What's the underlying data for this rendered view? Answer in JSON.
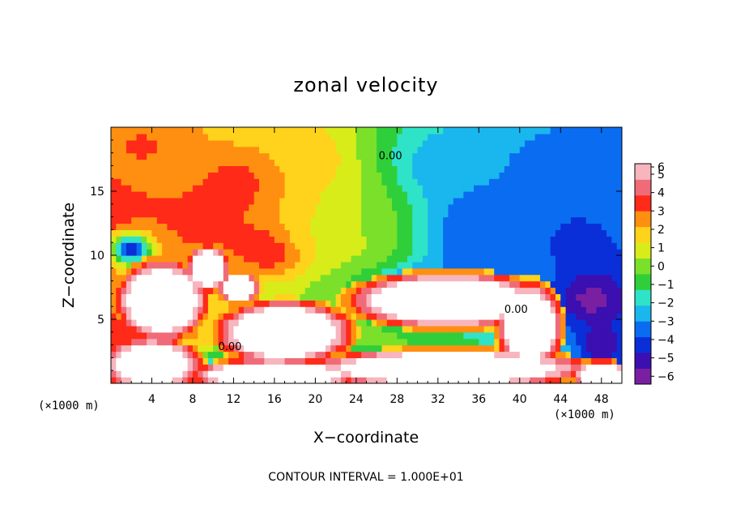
{
  "chart_data": {
    "type": "heatmap",
    "title": "zonal velocity",
    "xlabel": "X−coordinate",
    "ylabel": "Z−coordinate",
    "x_unit_label_left": "(×1000 m)",
    "x_unit_label_right": "(×1000 m)",
    "footer": "CONTOUR INTERVAL = 1.000E+01",
    "xlim": [
      0,
      50
    ],
    "ylim": [
      0,
      20
    ],
    "x_ticks": [
      4,
      8,
      12,
      16,
      20,
      24,
      28,
      32,
      36,
      40,
      44,
      48
    ],
    "x_tick_labels": [
      "4",
      "8",
      "12",
      "16",
      "20",
      "24",
      "28",
      "32",
      "36",
      "40",
      "44",
      "48"
    ],
    "y_ticks": [
      5,
      10,
      15
    ],
    "y_tick_labels": [
      "5",
      "10",
      "15"
    ],
    "colorbar": {
      "min": -6,
      "max": 6,
      "ticks": [
        6,
        5,
        4,
        3,
        2,
        1,
        0,
        -1,
        -2,
        -3,
        -4,
        -5,
        -6
      ],
      "tick_labels": [
        "6",
        "5",
        "4",
        "3",
        "2",
        "1",
        "0",
        "−1",
        "−2",
        "−3",
        "−4",
        "−5",
        "−6"
      ],
      "colors": [
        "#7a1fa2",
        "#3b0fb0",
        "#0a2fd8",
        "#0a6cf0",
        "#19b7ee",
        "#2ee3c8",
        "#2ecf3a",
        "#7be02a",
        "#d8ec1a",
        "#ffd21c",
        "#ff8f10",
        "#ff2a18",
        "#f06b78",
        "#f7b5be"
      ]
    },
    "contour_labels": [
      {
        "text": "0.00",
        "x": 10.5,
        "z": 2.6
      },
      {
        "text": "0.00",
        "x": 26.2,
        "z": 17.5
      },
      {
        "text": "0.00",
        "x": 38.5,
        "z": 5.5
      }
    ],
    "blobs": [
      {
        "x": 13,
        "z": 15.5,
        "rx": 6,
        "rz": 3.5,
        "v": 4
      },
      {
        "x": 8,
        "z": 12.5,
        "rx": 5,
        "rz": 4,
        "v": 3.5
      },
      {
        "x": 3,
        "z": 18.5,
        "rx": 5,
        "rz": 2.5,
        "v": 3.5
      },
      {
        "x": 16,
        "z": 10.5,
        "rx": 4,
        "rz": 2,
        "v": 5
      },
      {
        "x": 20,
        "z": 17,
        "rx": 5,
        "rz": 4,
        "v": 2.5
      },
      {
        "x": 21,
        "z": 12,
        "rx": 5,
        "rz": 3,
        "v": 2
      },
      {
        "x": 25,
        "z": 12,
        "rx": 5,
        "rz": 5,
        "v": 1
      },
      {
        "x": 36,
        "z": 12,
        "rx": 6,
        "rz": 5,
        "v": -3.5
      },
      {
        "x": 43,
        "z": 15,
        "rx": 6,
        "rz": 4,
        "v": -3
      },
      {
        "x": 34,
        "z": 17,
        "rx": 6,
        "rz": 3,
        "v": -2.5
      },
      {
        "x": 46,
        "z": 11,
        "rx": 4,
        "rz": 2.5,
        "v": -4
      },
      {
        "x": 2,
        "z": 10.5,
        "rx": 2,
        "rz": 1.2,
        "v": -4
      },
      {
        "x": 47,
        "z": 6.5,
        "rx": 3.5,
        "rz": 2.2,
        "v": -5.5
      },
      {
        "x": 30,
        "z": 7,
        "rx": 5,
        "rz": 1.8,
        "v": -4.5
      },
      {
        "x": 17,
        "z": 1.5,
        "rx": 8,
        "rz": 1.5,
        "v": -4.5
      },
      {
        "x": 5,
        "z": 0.8,
        "rx": 5,
        "rz": 1.2,
        "v": -4
      },
      {
        "x": 41,
        "z": 1,
        "rx": 3,
        "rz": 1.2,
        "v": -4.5
      },
      {
        "x": 48,
        "z": 3,
        "rx": 2.5,
        "rz": 2,
        "v": -5
      }
    ],
    "saturated_regions": [
      {
        "x": 5,
        "z": 6.5,
        "rx": 3.2,
        "rz": 2.3,
        "v": 7
      },
      {
        "x": 9.5,
        "z": 9,
        "rx": 1.5,
        "rz": 1.3,
        "v": 7
      },
      {
        "x": 17,
        "z": 4,
        "rx": 4.8,
        "rz": 1.8,
        "v": 7
      },
      {
        "x": 12.5,
        "z": 7.5,
        "rx": 1.5,
        "rz": 0.9,
        "v": 7
      },
      {
        "x": 33,
        "z": 6.5,
        "rx": 7,
        "rz": 1.6,
        "v": 7
      },
      {
        "x": 41,
        "z": 4.5,
        "rx": 2.3,
        "rz": 2.5,
        "v": 7
      },
      {
        "x": 33,
        "z": 1.2,
        "rx": 10,
        "rz": 1.1,
        "v": 7
      },
      {
        "x": 4,
        "z": 1.5,
        "rx": 3.5,
        "rz": 1.5,
        "v": 7
      },
      {
        "x": 16,
        "z": 0.7,
        "rx": 6,
        "rz": 0.9,
        "v": 7
      },
      {
        "x": 48,
        "z": 0.7,
        "rx": 2,
        "rz": 0.8,
        "v": 7
      }
    ]
  }
}
